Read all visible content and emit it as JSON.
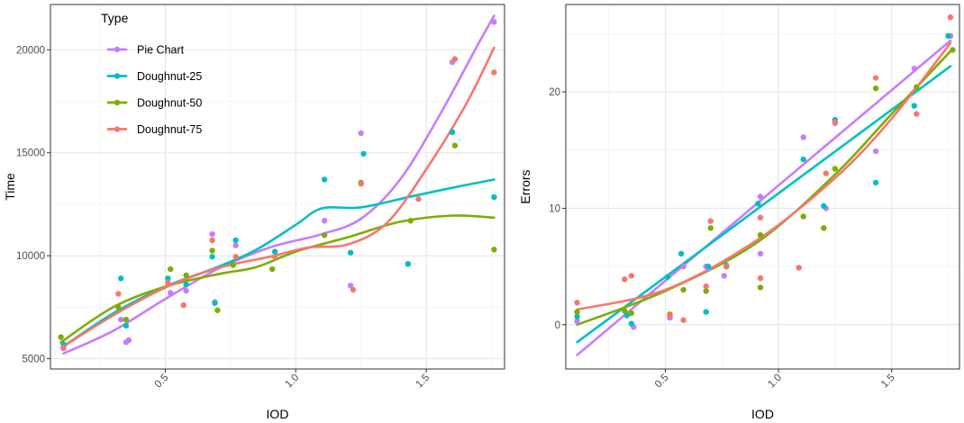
{
  "chart_data": [
    {
      "type": "scatter",
      "xlabel": "IOD",
      "ylabel": "Time",
      "xlim": [
        0.06,
        1.8
      ],
      "ylim": [
        4500,
        22200
      ],
      "xticks": [
        0.5,
        1.0,
        1.5
      ],
      "xtick_labels": [
        "0.5",
        "1.0",
        "1.5"
      ],
      "yticks": [
        5000,
        10000,
        15000,
        20000
      ],
      "ytick_labels": [
        "5000",
        "10000",
        "15000",
        "20000"
      ],
      "grid": true,
      "legend": {
        "title": "Type",
        "placement": "top-left"
      },
      "series": [
        {
          "name": "Pie Chart",
          "color": "#C77CFF",
          "points": [
            [
              0.11,
              5500
            ],
            [
              0.33,
              6900
            ],
            [
              0.35,
              5800
            ],
            [
              0.36,
              5900
            ],
            [
              0.52,
              8200
            ],
            [
              0.58,
              8300
            ],
            [
              0.68,
              11050
            ],
            [
              0.69,
              7750
            ],
            [
              0.77,
              10500
            ],
            [
              0.92,
              10200
            ],
            [
              1.11,
              11700
            ],
            [
              1.21,
              8550
            ],
            [
              1.25,
              15950
            ],
            [
              1.43,
              9600
            ],
            [
              1.6,
              19400
            ],
            [
              1.76,
              21350
            ]
          ],
          "trend": [
            [
              0.11,
              5250
            ],
            [
              0.3,
              6350
            ],
            [
              0.5,
              7900
            ],
            [
              0.7,
              9350
            ],
            [
              0.9,
              10400
            ],
            [
              1.1,
              11050
            ],
            [
              1.25,
              11800
            ],
            [
              1.4,
              13700
            ],
            [
              1.55,
              16800
            ],
            [
              1.7,
              20300
            ],
            [
              1.76,
              21650
            ]
          ]
        },
        {
          "name": "Doughnut-25",
          "color": "#00BFC4",
          "points": [
            [
              0.11,
              5700
            ],
            [
              0.33,
              8900
            ],
            [
              0.35,
              6600
            ],
            [
              0.51,
              8900
            ],
            [
              0.58,
              8600
            ],
            [
              0.68,
              9950
            ],
            [
              0.69,
              7700
            ],
            [
              0.77,
              10750
            ],
            [
              0.92,
              10200
            ],
            [
              1.11,
              13700
            ],
            [
              1.21,
              10150
            ],
            [
              1.26,
              14950
            ],
            [
              1.43,
              9600
            ],
            [
              1.6,
              16000
            ],
            [
              1.76,
              12850
            ]
          ],
          "trend": [
            [
              0.11,
              5600
            ],
            [
              0.3,
              7200
            ],
            [
              0.5,
              8500
            ],
            [
              0.7,
              9450
            ],
            [
              0.85,
              10300
            ],
            [
              1.0,
              11500
            ],
            [
              1.1,
              12300
            ],
            [
              1.25,
              12350
            ],
            [
              1.45,
              12900
            ],
            [
              1.6,
              13300
            ],
            [
              1.76,
              13700
            ]
          ]
        },
        {
          "name": "Doughnut-50",
          "color": "#7CAE00",
          "points": [
            [
              0.1,
              6050
            ],
            [
              0.32,
              7500
            ],
            [
              0.35,
              6900
            ],
            [
              0.52,
              9350
            ],
            [
              0.58,
              9050
            ],
            [
              0.68,
              10250
            ],
            [
              0.7,
              7350
            ],
            [
              0.76,
              9550
            ],
            [
              0.91,
              9350
            ],
            [
              1.11,
              11000
            ],
            [
              1.25,
              13550
            ],
            [
              1.44,
              11700
            ],
            [
              1.61,
              15350
            ],
            [
              1.76,
              10300
            ]
          ],
          "trend": [
            [
              0.1,
              5800
            ],
            [
              0.3,
              7500
            ],
            [
              0.5,
              8500
            ],
            [
              0.7,
              9100
            ],
            [
              0.85,
              9450
            ],
            [
              1.0,
              10200
            ],
            [
              1.2,
              10900
            ],
            [
              1.4,
              11650
            ],
            [
              1.6,
              11950
            ],
            [
              1.76,
              11850
            ]
          ]
        },
        {
          "name": "Doughnut-75",
          "color": "#F8766D",
          "points": [
            [
              0.11,
              5550
            ],
            [
              0.32,
              8150
            ],
            [
              0.51,
              8700
            ],
            [
              0.57,
              7600
            ],
            [
              0.68,
              10750
            ],
            [
              0.77,
              9950
            ],
            [
              0.92,
              9950
            ],
            [
              1.22,
              8350
            ],
            [
              1.25,
              13500
            ],
            [
              1.47,
              12750
            ],
            [
              1.61,
              19550
            ],
            [
              1.76,
              18900
            ]
          ],
          "trend": [
            [
              0.11,
              5600
            ],
            [
              0.3,
              7100
            ],
            [
              0.5,
              8450
            ],
            [
              0.7,
              9400
            ],
            [
              0.9,
              9950
            ],
            [
              1.05,
              10400
            ],
            [
              1.2,
              10550
            ],
            [
              1.35,
              11600
            ],
            [
              1.5,
              14200
            ],
            [
              1.65,
              17300
            ],
            [
              1.76,
              20100
            ]
          ]
        }
      ]
    },
    {
      "type": "scatter",
      "xlabel": "IOD",
      "ylabel": "Errors",
      "xlim": [
        0.06,
        1.8
      ],
      "ylim": [
        -3.8,
        27.5
      ],
      "xticks": [
        0.5,
        1.0,
        1.5
      ],
      "xtick_labels": [
        "0.5",
        "1.0",
        "1.5"
      ],
      "yticks": [
        0,
        10,
        20
      ],
      "ytick_labels": [
        "0",
        "10",
        "20"
      ],
      "grid": true,
      "series": [
        {
          "name": "Pie Chart",
          "color": "#C77CFF",
          "points": [
            [
              0.11,
              0.3
            ],
            [
              0.33,
              0.9
            ],
            [
              0.36,
              -0.2
            ],
            [
              0.52,
              0.6
            ],
            [
              0.58,
              5.0
            ],
            [
              0.68,
              5.0
            ],
            [
              0.69,
              4.8
            ],
            [
              0.76,
              4.2
            ],
            [
              0.92,
              11.0
            ],
            [
              0.92,
              6.1
            ],
            [
              1.11,
              16.1
            ],
            [
              1.21,
              10.0
            ],
            [
              1.25,
              17.3
            ],
            [
              1.43,
              14.9
            ],
            [
              1.6,
              22.0
            ],
            [
              1.76,
              24.8
            ]
          ],
          "trend": [
            [
              0.11,
              -2.6
            ],
            [
              1.76,
              24.4
            ]
          ]
        },
        {
          "name": "Doughnut-25",
          "color": "#00BFC4",
          "points": [
            [
              0.11,
              0.7
            ],
            [
              0.33,
              0.8
            ],
            [
              0.35,
              0.1
            ],
            [
              0.51,
              4.1
            ],
            [
              0.57,
              6.1
            ],
            [
              0.68,
              1.1
            ],
            [
              0.69,
              5.0
            ],
            [
              0.77,
              5.1
            ],
            [
              0.91,
              10.4
            ],
            [
              1.11,
              14.2
            ],
            [
              1.2,
              10.2
            ],
            [
              1.25,
              17.6
            ],
            [
              1.43,
              12.2
            ],
            [
              1.6,
              18.8
            ],
            [
              1.75,
              24.8
            ]
          ],
          "trend": [
            [
              0.11,
              -1.5
            ],
            [
              1.76,
              22.2
            ]
          ]
        },
        {
          "name": "Doughnut-50",
          "color": "#7CAE00",
          "points": [
            [
              0.11,
              1.1
            ],
            [
              0.32,
              1.2
            ],
            [
              0.35,
              1.0
            ],
            [
              0.52,
              0.9
            ],
            [
              0.58,
              3.0
            ],
            [
              0.68,
              2.9
            ],
            [
              0.7,
              8.3
            ],
            [
              0.77,
              5.0
            ],
            [
              0.92,
              7.7
            ],
            [
              0.92,
              3.2
            ],
            [
              1.11,
              9.3
            ],
            [
              1.2,
              8.3
            ],
            [
              1.25,
              13.4
            ],
            [
              1.43,
              20.3
            ],
            [
              1.61,
              20.4
            ],
            [
              1.77,
              23.6
            ]
          ],
          "trend": [
            [
              0.11,
              0.0
            ],
            [
              0.5,
              2.9
            ],
            [
              0.9,
              7.0
            ],
            [
              1.25,
              12.9
            ],
            [
              1.5,
              18.1
            ],
            [
              1.77,
              23.7
            ]
          ]
        },
        {
          "name": "Doughnut-75",
          "color": "#F8766D",
          "points": [
            [
              0.11,
              1.9
            ],
            [
              0.32,
              3.9
            ],
            [
              0.35,
              4.2
            ],
            [
              0.52,
              0.8
            ],
            [
              0.58,
              0.4
            ],
            [
              0.68,
              3.3
            ],
            [
              0.7,
              8.9
            ],
            [
              0.77,
              5.0
            ],
            [
              0.92,
              9.2
            ],
            [
              0.92,
              4.0
            ],
            [
              1.09,
              4.9
            ],
            [
              1.21,
              13.0
            ],
            [
              1.25,
              17.4
            ],
            [
              1.43,
              21.2
            ],
            [
              1.61,
              18.1
            ],
            [
              1.76,
              26.4
            ]
          ],
          "trend": [
            [
              0.11,
              1.3
            ],
            [
              0.5,
              3.0
            ],
            [
              0.9,
              7.2
            ],
            [
              1.25,
              12.6
            ],
            [
              1.5,
              17.7
            ],
            [
              1.76,
              24.2
            ]
          ]
        }
      ]
    }
  ]
}
